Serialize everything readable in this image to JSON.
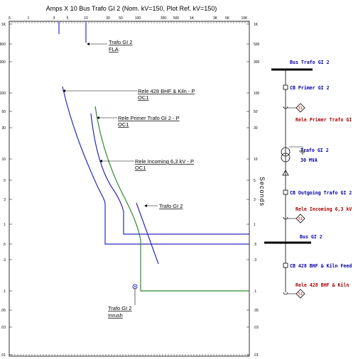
{
  "tcc": {
    "title": "Amps  X  10   Bus Trafo GI 2 (Nom. kV=150, Plot Ref. kV=150)",
    "y_axis_label": "Seconds",
    "x_tick_labels": [
      ".5",
      "1",
      "3",
      "5",
      "10",
      "30",
      "50",
      "100",
      "300",
      "500",
      "1K",
      "3K",
      "5K",
      "10K"
    ],
    "y_tick_labels": [
      "1K",
      "500",
      "300",
      "100",
      "50",
      "30",
      "10",
      "5",
      "3",
      "1",
      ".5",
      ".3",
      ".1",
      ".05",
      ".03",
      ".01"
    ],
    "labels": {
      "fla": [
        "Trafo GI 2",
        "FLA"
      ],
      "rele428": [
        "Rele 428 BHF & Kiln - P",
        "OC1"
      ],
      "relePrimer": [
        "Rele Primer Trafo GI 2 - P",
        "OC1"
      ],
      "releIncoming": [
        "Rele Incoming 6,3 kV - P",
        "OC1"
      ],
      "trafoDamage": [
        "Trafo GI 2"
      ],
      "inrush": [
        "Trafo GI 2",
        "Inrush"
      ]
    },
    "colors": {
      "relay": "#2a2ab8",
      "primer": "#2e8b2e",
      "fla": "#0000cc",
      "frame": "#000000"
    }
  },
  "one_line": {
    "bus_top": "Bus Trafo GI 2",
    "cb_primer": "CB Primer GI 2",
    "rele_primer": "Rele Primer Trafo GI",
    "trafo_name": "Trafo GI 2",
    "trafo_rating": "30 MVA",
    "cb_outgoing": "CB Outgoing Trafo GI 2",
    "rele_incoming": "Rele Incoming 6,3 kV",
    "bus_bottom": "Bus GI 2",
    "cb_428": "CB 428 BHF & Kiln Feed",
    "rele_428": "Rele 428 BHF & Kiln",
    "relay_glyph": "51"
  }
}
